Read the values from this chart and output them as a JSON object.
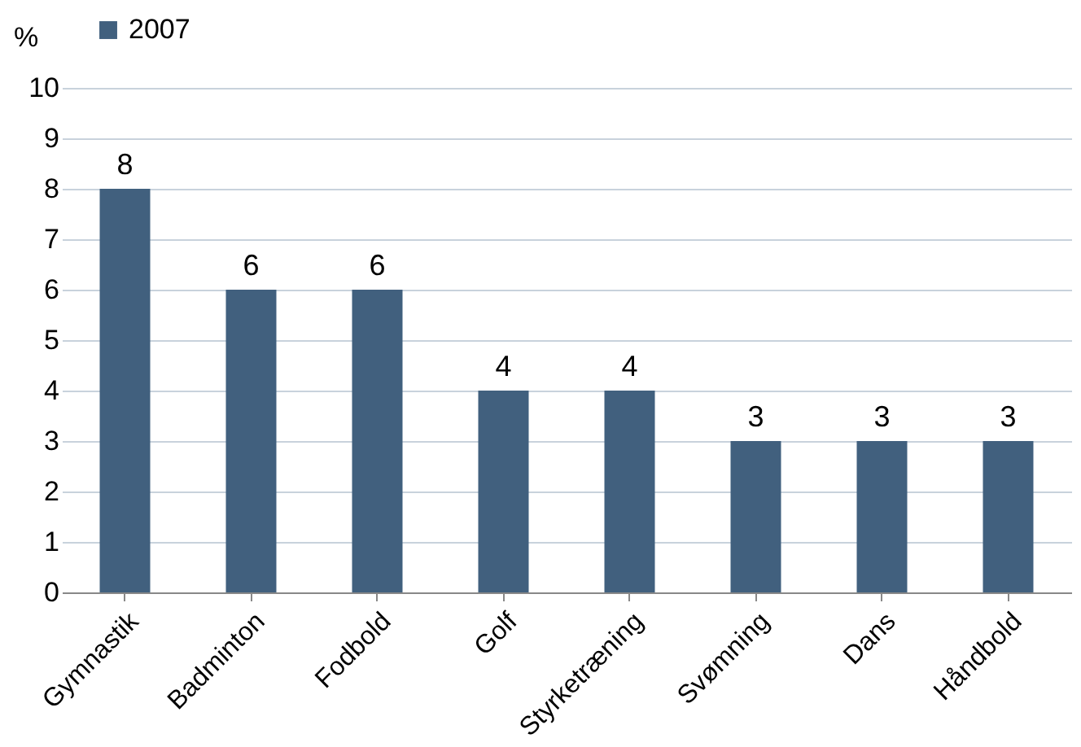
{
  "chart_data": {
    "type": "bar",
    "ylabel": "%",
    "categories": [
      "Gymnastik",
      "Badminton",
      "Fodbold",
      "Golf",
      "Styrketræning",
      "Svømning",
      "Dans",
      "Håndbold"
    ],
    "series": [
      {
        "name": "2007",
        "color": "#41607e",
        "values": [
          8,
          6,
          6,
          4,
          4,
          3,
          3,
          3
        ]
      }
    ],
    "ylim": [
      0,
      10
    ],
    "yticks": [
      0,
      1,
      2,
      3,
      4,
      5,
      6,
      7,
      8,
      9,
      10
    ],
    "grid": "y",
    "legend": "top left",
    "data_labels": true
  }
}
